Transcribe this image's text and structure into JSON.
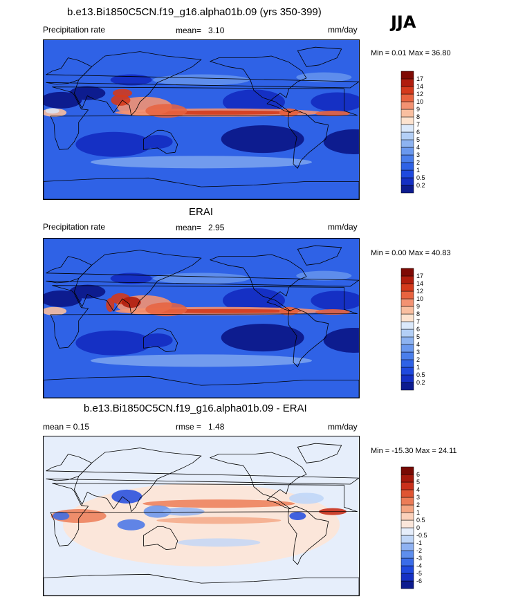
{
  "season": "JJA",
  "panels": [
    {
      "title": "b.e13.Bi1850C5CN.f19_g16.alpha01b.09 (yrs 350-399)",
      "left_label": "Precipitation rate",
      "mean_label": "mean=",
      "mean_value": "3.10",
      "units": "mm/day",
      "minmax_text": "Min =   0.01 Max =  36.80",
      "palette": "abs",
      "colorbar_levels": [
        "0.2",
        "0.5",
        "1",
        "2",
        "3",
        "4",
        "5",
        "6",
        "7",
        "8",
        "9",
        "10",
        "12",
        "14",
        "17"
      ],
      "colorbar_colors": [
        "#0d1c8f",
        "#1530c4",
        "#1f49de",
        "#2f62e6",
        "#4a7eeb",
        "#6a98ee",
        "#8db3f1",
        "#b3cff6",
        "#dbe9fb",
        "#fde3cf",
        "#f9bfa0",
        "#f39272",
        "#e8633f",
        "#d43a1c",
        "#b01d0d",
        "#7e0a04"
      ]
    },
    {
      "title": "ERAI",
      "left_label": "Precipitation rate",
      "mean_label": "mean=",
      "mean_value": "2.95",
      "units": "mm/day",
      "minmax_text": "Min =   0.00 Max =  40.83",
      "palette": "abs",
      "colorbar_levels": [
        "0.2",
        "0.5",
        "1",
        "2",
        "3",
        "4",
        "5",
        "6",
        "7",
        "8",
        "9",
        "10",
        "12",
        "14",
        "17"
      ],
      "colorbar_colors": [
        "#0d1c8f",
        "#1530c4",
        "#1f49de",
        "#2f62e6",
        "#4a7eeb",
        "#6a98ee",
        "#8db3f1",
        "#b3cff6",
        "#dbe9fb",
        "#fde3cf",
        "#f9bfa0",
        "#f39272",
        "#e8633f",
        "#d43a1c",
        "#b01d0d",
        "#7e0a04"
      ]
    },
    {
      "title": "b.e13.Bi1850C5CN.f19_g16.alpha01b.09 - ERAI",
      "left_label": "mean =   0.15",
      "mean_label": "rmse =",
      "mean_value": "1.48",
      "units": "mm/day",
      "minmax_text": "Min = -15.30 Max =  24.11",
      "palette": "diff",
      "colorbar_levels": [
        "-6",
        "-5",
        "-4",
        "-3",
        "-2",
        "-1",
        "-0.5",
        "0",
        "0.5",
        "1",
        "2",
        "3",
        "4",
        "5",
        "6"
      ],
      "colorbar_colors": [
        "#0d1c8f",
        "#1530c4",
        "#1f49de",
        "#3a6ce8",
        "#5e8eed",
        "#8fb2f2",
        "#c0d6f7",
        "#e6eefb",
        "#fbe6da",
        "#fbd1bb",
        "#f4a582",
        "#ec7c57",
        "#df5533",
        "#c9301b",
        "#a4190c",
        "#780a04"
      ]
    }
  ]
}
